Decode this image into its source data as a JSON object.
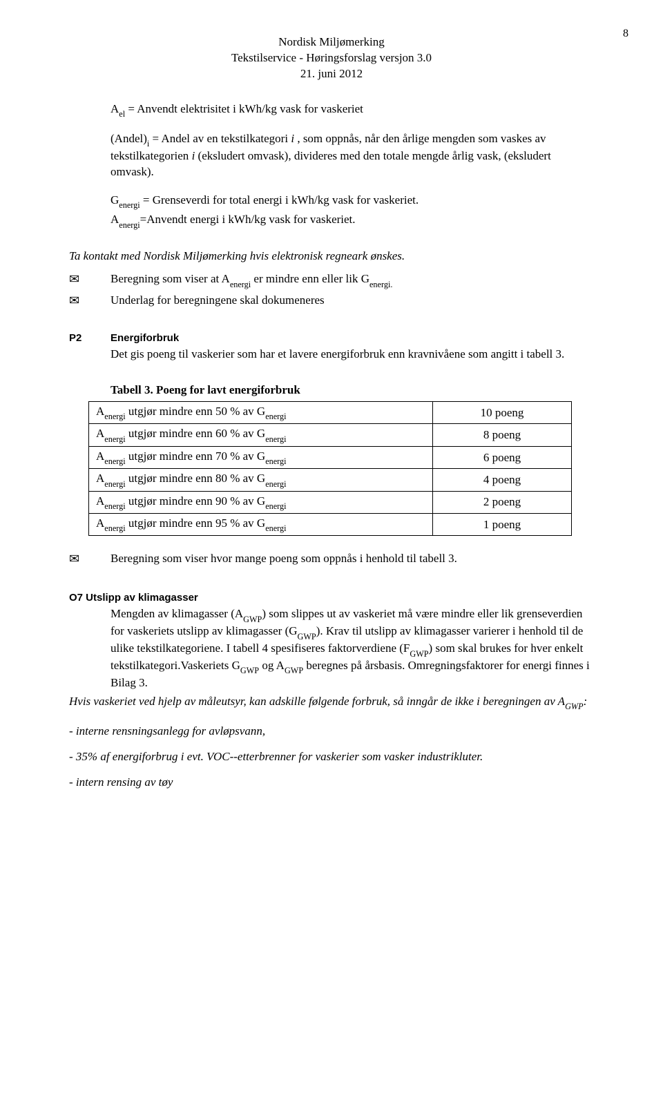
{
  "page_number": "8",
  "header": {
    "line1": "Nordisk Miljømerking",
    "line2": "Tekstilservice - Høringsforslag versjon 3.0",
    "line3": "21. juni 2012"
  },
  "defs": {
    "ael": "A<span class=\"sub\">el</span> = Anvendt elektrisitet i kWh/kg vask for vaskeriet",
    "andel": "(Andel)<span class=\"sub\">i</span> = Andel av en tekstilkategori <span class=\"italic\">i</span> , som oppnås, når den årlige mengden som vaskes av tekstilkategorien <span class=\"italic\">i</span> (eksludert omvask), divideres med den totale mengde årlig vask, (eksludert omvask).",
    "genergi": "G<span class=\"sub\">energi</span> = Grenseverdi for total energi i kWh/kg vask for vaskeriet.",
    "aenergi": "A<span class=\"sub\">energi</span>=Anvendt energi i kWh/kg vask for vaskeriet."
  },
  "contact_note": "Ta kontakt med Nordisk Miljømerking hvis elektronisk regneark ønskes.",
  "bullets1": {
    "b1": "Beregning som viser at A<span class=\"sub\">energi</span> er mindre enn eller lik G<span class=\"sub\">energi.</span>",
    "b2": "Underlag for beregningene skal dokumeneres"
  },
  "p2": {
    "id": "P2",
    "title": "Energiforbruk",
    "body": "Det gis poeng til vaskerier som har et lavere energiforbruk enn kravnivåene som angitt i tabell 3."
  },
  "table3": {
    "title": "Tabell 3. Poeng for lavt energiforbruk",
    "rows": [
      {
        "desc": "A<span class=\"sub\">energi</span> utgjør mindre enn 50 % av G<span class=\"sub\">energi</span>",
        "pts": "10 poeng"
      },
      {
        "desc": "A<span class=\"sub\">energi</span> utgjør mindre enn 60 % av G<span class=\"sub\">energi</span>",
        "pts": "8 poeng"
      },
      {
        "desc": "A<span class=\"sub\">energi</span> utgjør mindre enn 70 % av G<span class=\"sub\">energi</span>",
        "pts": "6 poeng"
      },
      {
        "desc": "A<span class=\"sub\">energi</span> utgjør mindre enn 80 % av G<span class=\"sub\">energi</span>",
        "pts": "4 poeng"
      },
      {
        "desc": "A<span class=\"sub\">energi</span> utgjør mindre enn 90 % av G<span class=\"sub\">energi</span>",
        "pts": "2 poeng"
      },
      {
        "desc": "A<span class=\"sub\">energi</span> utgjør mindre enn 95 % av G<span class=\"sub\">energi</span>",
        "pts": "1 poeng"
      }
    ]
  },
  "bullet2": "Beregning som viser hvor mange poeng som oppnås i henhold til tabell 3.",
  "o7": {
    "title": "O7 Utslipp av klimagasser",
    "body": "Mengden av klimagasser (A<span class=\"sub\">GWP</span>) som slippes ut av vaskeriet må være mindre eller lik grenseverdien for vaskeriets utslipp av klimagasser (G<span class=\"sub\">GWP</span>). Krav til utslipp av klimagasser varierer i henhold til de ulike tekstilkategoriene. I tabell 4 spesifiseres faktorverdiene (F<span class=\"sub\">GWP</span>) som skal brukes for hver enkelt tekstilkategori.Vaskeriets G<span class=\"sub\">GWP</span> og A<span class=\"sub\">GWP</span> beregnes på årsbasis. Omregningsfaktorer for energi finnes i Bilag 3.",
    "note": "Hvis vaskeriet ved hjelp av måleutsyr, kan adskille følgende forbruk,  så inngår de ikke i beregningen av A<span class=\"sub\">GWP</span>:"
  },
  "dashes": {
    "d1": "- interne rensningsanlegg for avløpsvann,",
    "d2": "- 35% af energiforbrug i evt. VOC--etterbrenner for vaskerier som vasker industrikluter.",
    "d3": "- intern rensing av tøy"
  }
}
